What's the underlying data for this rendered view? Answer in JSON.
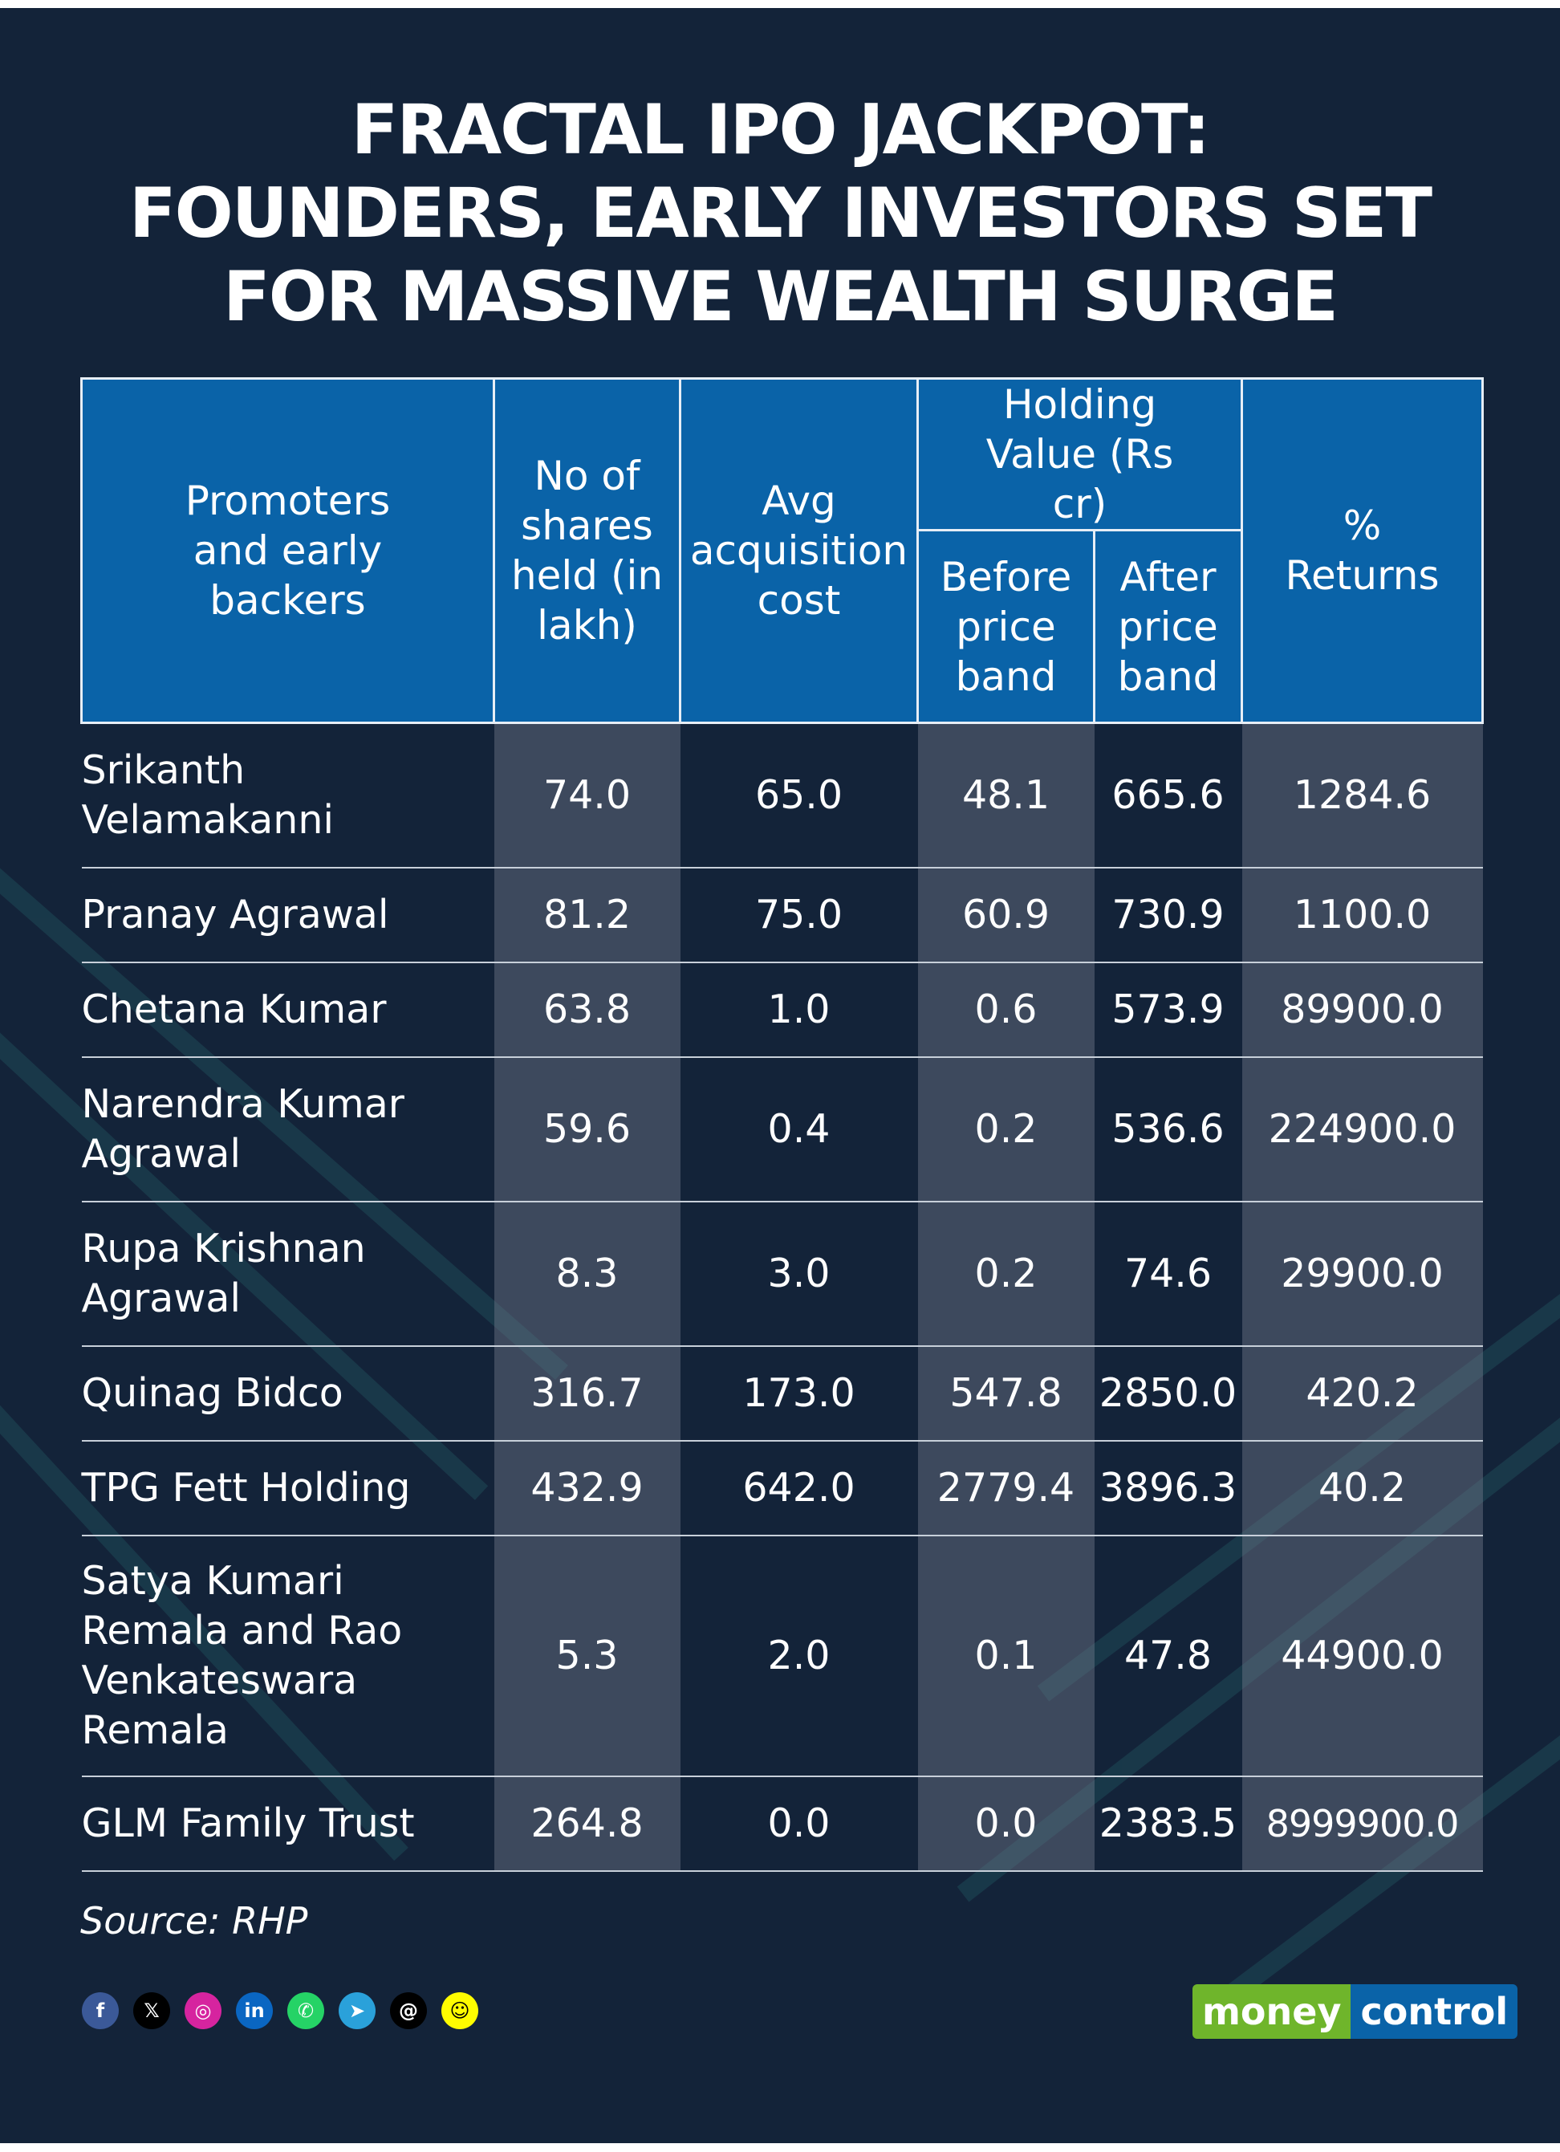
{
  "headline": [
    "FRACTAL IPO JACKPOT:",
    "FOUNDERS, EARLY INVESTORS SET",
    "FOR MASSIVE WEALTH SURGE"
  ],
  "table": {
    "headers": {
      "promoters": "Promoters and early backers",
      "shares": "No of shares held (in lakh)",
      "cost": "Avg acquisition cost",
      "holding_value": "Holding Value (Rs cr)",
      "before": "Before price band",
      "after": "After price band",
      "returns": "% Returns"
    },
    "rows": [
      {
        "name": "Srikanth Velamakanni",
        "shares": "74.0",
        "cost": "65.0",
        "before": "48.1",
        "after": "665.6",
        "returns": "1284.6"
      },
      {
        "name": "Pranay Agrawal",
        "shares": "81.2",
        "cost": "75.0",
        "before": "60.9",
        "after": "730.9",
        "returns": "1100.0"
      },
      {
        "name": "Chetana Kumar",
        "shares": "63.8",
        "cost": "1.0",
        "before": "0.6",
        "after": "573.9",
        "returns": "89900.0"
      },
      {
        "name": "Narendra Kumar Agrawal",
        "shares": "59.6",
        "cost": "0.4",
        "before": "0.2",
        "after": "536.6",
        "returns": "224900.0"
      },
      {
        "name": "Rupa Krishnan Agrawal",
        "shares": "8.3",
        "cost": "3.0",
        "before": "0.2",
        "after": "74.6",
        "returns": "29900.0"
      },
      {
        "name": "Quinag Bidco",
        "shares": "316.7",
        "cost": "173.0",
        "before": "547.8",
        "after": "2850.0",
        "returns": "420.2"
      },
      {
        "name": "TPG Fett Holding",
        "shares": "432.9",
        "cost": "642.0",
        "before": "2779.4",
        "after": "3896.3",
        "returns": "40.2"
      },
      {
        "name": "Satya Kumari Remala and Rao Venkateswara Remala",
        "shares": "5.3",
        "cost": "2.0",
        "before": "0.1",
        "after": "47.8",
        "returns": "44900.0"
      },
      {
        "name": "GLM Family Trust",
        "shares": "264.8",
        "cost": "0.0",
        "before": "0.0",
        "after": "2383.5",
        "returns": "8999900.0"
      }
    ]
  },
  "source": "Source: RHP",
  "social_icons": [
    "facebook-icon",
    "x-icon",
    "instagram-icon",
    "linkedin-icon",
    "whatsapp-icon",
    "telegram-icon",
    "threads-icon",
    "snapchat-icon"
  ],
  "brand": {
    "part1": "money",
    "part2": "control"
  },
  "colors": {
    "background": "#132339",
    "header_blue": "#0a63a8",
    "brand_green": "#6fb52b",
    "text": "#ffffff"
  }
}
